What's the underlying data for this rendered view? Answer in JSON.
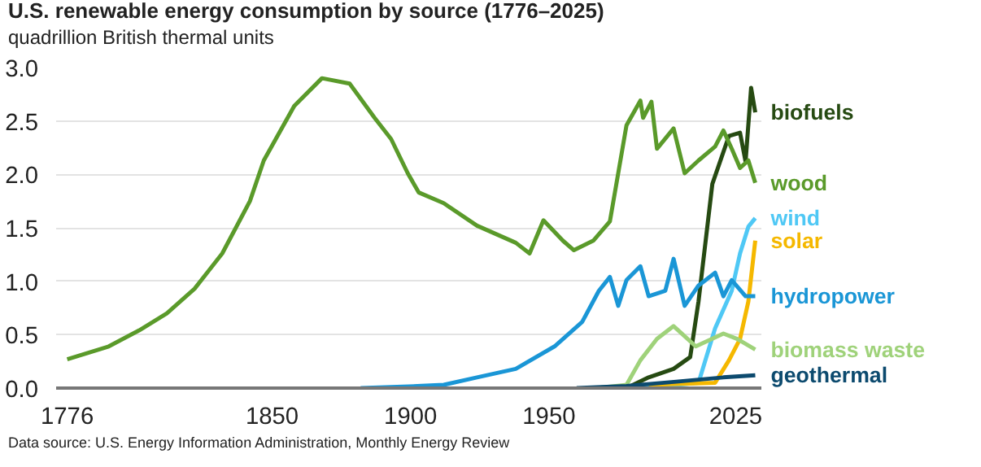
{
  "chart_data": {
    "type": "line",
    "title": "U.S. renewable energy consumption by source (1776–2025)",
    "subtitle": "quadrillion British thermal units",
    "xlim": [
      1772,
      2027
    ],
    "ylim": [
      0,
      3.0
    ],
    "xticks": [
      1776,
      1850,
      1900,
      1950,
      2025
    ],
    "yticks": [
      {
        "value": 0,
        "label": "0.0"
      },
      {
        "value": 0.5,
        "label": "0.5"
      },
      {
        "value": 1,
        "label": "1.0"
      },
      {
        "value": 1.5,
        "label": "1.5"
      },
      {
        "value": 2,
        "label": "2.0"
      },
      {
        "value": 2.5,
        "label": "2.5"
      },
      {
        "value": 3,
        "label": "3.0"
      }
    ],
    "grid": "y",
    "line_style": "solid",
    "marker": "none",
    "annotations": [
      "Data source: U.S. Energy Information Administration, Monthly Energy Review"
    ],
    "series": [
      {
        "name": "biofuels",
        "color": "#264a12",
        "x": [
          1978,
          1986,
          1995,
          2001,
          2004,
          2009,
          2015,
          2019,
          2021,
          2023,
          2024.5
        ],
        "values": [
          0,
          0.1,
          0.18,
          0.29,
          0.81,
          1.91,
          2.36,
          2.39,
          2.12,
          2.81,
          2.58
        ]
      },
      {
        "name": "wood",
        "color": "#5a9a2a",
        "x": [
          1776,
          1791,
          1802,
          1812,
          1822,
          1832,
          1842,
          1847,
          1858,
          1868,
          1878,
          1887,
          1893,
          1899,
          1903,
          1912,
          1924,
          1938,
          1943,
          1948,
          1955,
          1959,
          1966,
          1972,
          1978,
          1983,
          1984,
          1987,
          1989,
          1995,
          1999,
          2004,
          2010,
          2013,
          2016,
          2019,
          2022,
          2024.5
        ],
        "values": [
          0.27,
          0.39,
          0.54,
          0.7,
          0.93,
          1.26,
          1.75,
          2.13,
          2.64,
          2.9,
          2.85,
          2.53,
          2.33,
          2.01,
          1.83,
          1.73,
          1.52,
          1.36,
          1.26,
          1.57,
          1.38,
          1.29,
          1.38,
          1.56,
          2.46,
          2.69,
          2.53,
          2.68,
          2.24,
          2.43,
          2.01,
          2.13,
          2.26,
          2.41,
          2.24,
          2.06,
          2.13,
          1.92
        ]
      },
      {
        "name": "wind",
        "color": "#4fc8f5",
        "x": [
          1983,
          2004,
          2010,
          2016,
          2019,
          2022,
          2024.5
        ],
        "values": [
          0,
          0.05,
          0.56,
          0.91,
          1.26,
          1.51,
          1.59
        ]
      },
      {
        "name": "solar",
        "color": "#f5b800",
        "x": [
          1986,
          2010,
          2015,
          2019,
          2022,
          2024.5
        ],
        "values": [
          0.03,
          0.05,
          0.26,
          0.46,
          0.81,
          1.38
        ]
      },
      {
        "name": "hydropower",
        "color": "#1a96d6",
        "x": [
          1882,
          1904,
          1912,
          1924,
          1938,
          1952,
          1962,
          1968,
          1972,
          1975,
          1978,
          1983,
          1986,
          1992,
          1995,
          1999,
          2004,
          2010,
          2013,
          2016,
          2021,
          2024.5
        ],
        "values": [
          0,
          0.02,
          0.03,
          0.1,
          0.18,
          0.39,
          0.62,
          0.91,
          1.04,
          0.77,
          1.01,
          1.14,
          0.86,
          0.91,
          1.21,
          0.77,
          0.96,
          1.08,
          0.86,
          1.01,
          0.86,
          0.86
        ]
      },
      {
        "name": "biomass waste",
        "color": "#9fd27a",
        "x": [
          1967,
          1978,
          1983,
          1989,
          1995,
          1998,
          2003,
          2013,
          2018,
          2024.5
        ],
        "values": [
          0,
          0.03,
          0.26,
          0.46,
          0.58,
          0.51,
          0.39,
          0.51,
          0.46,
          0.36
        ]
      },
      {
        "name": "geothermal",
        "color": "#0c4a6e",
        "x": [
          1960,
          1978,
          1996,
          2013,
          2024.5
        ],
        "values": [
          0,
          0.02,
          0.06,
          0.1,
          0.12
        ]
      }
    ]
  }
}
